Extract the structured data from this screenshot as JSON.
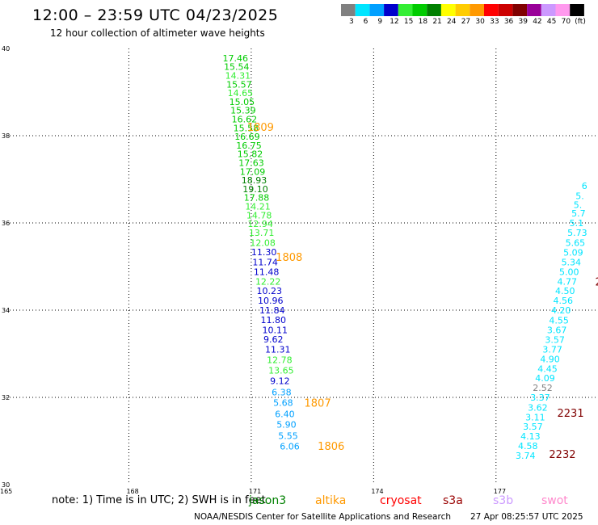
{
  "title": "12:00 – 23:59 UTC 04/23/2025",
  "subtitle": "12 hour collection of altimeter wave heights",
  "footer": "NOAA/NESDIS Center for Satellite Applications and Research",
  "timestamp": "27 Apr 08:25:57 UTC 2025",
  "note": "note:  1) Time is in UTC; 2) SWH is in feet",
  "satellites": [
    {
      "name": "jason3",
      "color": "#008000"
    },
    {
      "name": "altika",
      "color": "#ff9900"
    },
    {
      "name": "cryosat",
      "color": "#ff0000"
    },
    {
      "name": "s3a",
      "color": "#990000"
    },
    {
      "name": "s3b",
      "color": "#cc99ff"
    },
    {
      "name": "swot",
      "color": "#ff88cc"
    }
  ],
  "colorbar": {
    "labels": [
      "3",
      "6",
      "9",
      "12",
      "15",
      "18",
      "21",
      "24",
      "27",
      "30",
      "33",
      "36",
      "39",
      "42",
      "45",
      "70",
      "(ft)"
    ],
    "colors": [
      "#808080",
      "#00e5ff",
      "#00a0ff",
      "#0000cc",
      "#33ee33",
      "#00cc00",
      "#008000",
      "#ffff00",
      "#ffcc00",
      "#ff9900",
      "#ff0000",
      "#cc0000",
      "#800000",
      "#990099",
      "#cc99ff",
      "#ff99ee",
      "#000000"
    ]
  },
  "chart_data": {
    "type": "scatter",
    "title": "12:00 – 23:59 UTC 04/23/2025",
    "subtitle": "12 hour collection of altimeter wave heights",
    "x_ticks": [
      165,
      168,
      171,
      174,
      177
    ],
    "y_ticks": [
      30,
      32,
      34,
      36,
      38,
      40
    ],
    "xlim": [
      165,
      179.5
    ],
    "ylim": [
      30,
      40
    ],
    "grid": true,
    "series": [
      {
        "name": "jason3",
        "points": [
          {
            "x": 170.3,
            "y": 39.78,
            "v": "17.46",
            "c": "#00cc00"
          },
          {
            "x": 170.33,
            "y": 39.58,
            "v": "15.54",
            "c": "#00cc00"
          },
          {
            "x": 170.36,
            "y": 39.38,
            "v": "14.31",
            "c": "#33ee33"
          },
          {
            "x": 170.39,
            "y": 39.18,
            "v": "15.57",
            "c": "#00cc00"
          },
          {
            "x": 170.42,
            "y": 38.98,
            "v": "14.65",
            "c": "#33ee33"
          },
          {
            "x": 170.46,
            "y": 38.78,
            "v": "15.05",
            "c": "#00cc00"
          },
          {
            "x": 170.49,
            "y": 38.58,
            "v": "15.39",
            "c": "#00cc00"
          },
          {
            "x": 170.52,
            "y": 38.38,
            "v": "16.62",
            "c": "#00cc00"
          },
          {
            "x": 170.56,
            "y": 38.18,
            "v": "15.58",
            "c": "#00cc00"
          },
          {
            "x": 170.59,
            "y": 37.98,
            "v": "16.69",
            "c": "#00cc00"
          },
          {
            "x": 170.63,
            "y": 37.78,
            "v": "16.75",
            "c": "#00cc00"
          },
          {
            "x": 170.66,
            "y": 37.58,
            "v": "15.82",
            "c": "#00cc00"
          },
          {
            "x": 170.69,
            "y": 37.38,
            "v": "17.63",
            "c": "#00cc00"
          },
          {
            "x": 170.72,
            "y": 37.18,
            "v": "17.09",
            "c": "#00cc00"
          },
          {
            "x": 170.76,
            "y": 36.98,
            "v": "18.93",
            "c": "#008000"
          },
          {
            "x": 170.79,
            "y": 36.78,
            "v": "19.10",
            "c": "#008000"
          },
          {
            "x": 170.82,
            "y": 36.58,
            "v": "17.88",
            "c": "#00cc00"
          },
          {
            "x": 170.85,
            "y": 36.38,
            "v": "14.21",
            "c": "#33ee33"
          },
          {
            "x": 170.88,
            "y": 36.18,
            "v": "14.78",
            "c": "#33ee33"
          },
          {
            "x": 170.91,
            "y": 35.98,
            "v": "12.94",
            "c": "#33ee33"
          },
          {
            "x": 170.94,
            "y": 35.78,
            "v": "13.71",
            "c": "#33ee33"
          },
          {
            "x": 170.97,
            "y": 35.55,
            "v": "12.08",
            "c": "#33ee33"
          },
          {
            "x": 171.0,
            "y": 35.33,
            "v": "11.30",
            "c": "#0000cc"
          },
          {
            "x": 171.03,
            "y": 35.1,
            "v": "11.74",
            "c": "#0000cc"
          },
          {
            "x": 171.06,
            "y": 34.88,
            "v": "11.48",
            "c": "#0000cc"
          },
          {
            "x": 171.1,
            "y": 34.66,
            "v": "12.22",
            "c": "#33ee33"
          },
          {
            "x": 171.13,
            "y": 34.44,
            "v": "10.23",
            "c": "#0000cc"
          },
          {
            "x": 171.16,
            "y": 34.22,
            "v": "10.96",
            "c": "#0000cc"
          },
          {
            "x": 171.2,
            "y": 34.0,
            "v": "11.84",
            "c": "#0000cc"
          },
          {
            "x": 171.23,
            "y": 33.78,
            "v": "11.80",
            "c": "#0000cc"
          },
          {
            "x": 171.27,
            "y": 33.55,
            "v": "10.11",
            "c": "#0000cc"
          },
          {
            "x": 171.3,
            "y": 33.33,
            "v": "9.62",
            "c": "#0000cc"
          },
          {
            "x": 171.34,
            "y": 33.1,
            "v": "11.31",
            "c": "#0000cc"
          },
          {
            "x": 171.38,
            "y": 32.86,
            "v": "12.78",
            "c": "#33ee33"
          },
          {
            "x": 171.42,
            "y": 32.62,
            "v": "13.65",
            "c": "#33ee33"
          },
          {
            "x": 171.46,
            "y": 32.38,
            "v": "9.12",
            "c": "#0000cc"
          },
          {
            "x": 171.5,
            "y": 32.12,
            "v": "6.38",
            "c": "#00a0ff"
          },
          {
            "x": 171.54,
            "y": 31.88,
            "v": "5.68",
            "c": "#00a0ff"
          },
          {
            "x": 171.58,
            "y": 31.62,
            "v": "6.40",
            "c": "#00a0ff"
          },
          {
            "x": 171.62,
            "y": 31.38,
            "v": "5.90",
            "c": "#00a0ff"
          },
          {
            "x": 171.66,
            "y": 31.12,
            "v": "5.55",
            "c": "#00a0ff"
          },
          {
            "x": 171.7,
            "y": 30.88,
            "v": "6.06",
            "c": "#00a0ff"
          }
        ]
      },
      {
        "name": "cyan-track",
        "points": [
          {
            "x": 179.1,
            "y": 36.85,
            "v": "6",
            "c": "#00e5ff"
          },
          {
            "x": 178.95,
            "y": 36.62,
            "v": "5.",
            "c": "#00e5ff"
          },
          {
            "x": 178.9,
            "y": 36.42,
            "v": "5.",
            "c": "#00e5ff"
          },
          {
            "x": 178.85,
            "y": 36.22,
            "v": "5.7",
            "c": "#00e5ff"
          },
          {
            "x": 178.8,
            "y": 36.0,
            "v": "5.1",
            "c": "#00e5ff"
          },
          {
            "x": 178.75,
            "y": 35.78,
            "v": "5.73",
            "c": "#00e5ff"
          },
          {
            "x": 178.7,
            "y": 35.55,
            "v": "5.65",
            "c": "#00e5ff"
          },
          {
            "x": 178.65,
            "y": 35.32,
            "v": "5.09",
            "c": "#00e5ff"
          },
          {
            "x": 178.6,
            "y": 35.1,
            "v": "5.34",
            "c": "#00e5ff"
          },
          {
            "x": 178.55,
            "y": 34.88,
            "v": "5.00",
            "c": "#00e5ff"
          },
          {
            "x": 178.5,
            "y": 34.66,
            "v": "4.77",
            "c": "#00e5ff"
          },
          {
            "x": 178.45,
            "y": 34.44,
            "v": "4.50",
            "c": "#00e5ff"
          },
          {
            "x": 178.4,
            "y": 34.22,
            "v": "4.56",
            "c": "#00e5ff"
          },
          {
            "x": 178.35,
            "y": 34.0,
            "v": "4.20",
            "c": "#00e5ff"
          },
          {
            "x": 178.3,
            "y": 33.77,
            "v": "4.55",
            "c": "#00e5ff"
          },
          {
            "x": 178.25,
            "y": 33.55,
            "v": "3.67",
            "c": "#00e5ff"
          },
          {
            "x": 178.2,
            "y": 33.32,
            "v": "3.57",
            "c": "#00e5ff"
          },
          {
            "x": 178.14,
            "y": 33.1,
            "v": "3.77",
            "c": "#00e5ff"
          },
          {
            "x": 178.08,
            "y": 32.88,
            "v": "4.90",
            "c": "#00e5ff"
          },
          {
            "x": 178.02,
            "y": 32.66,
            "v": "4.45",
            "c": "#00e5ff"
          },
          {
            "x": 177.96,
            "y": 32.44,
            "v": "4.09",
            "c": "#00e5ff"
          },
          {
            "x": 177.9,
            "y": 32.22,
            "v": "2.52",
            "c": "#808080"
          },
          {
            "x": 177.84,
            "y": 32.0,
            "v": "3.37",
            "c": "#00e5ff"
          },
          {
            "x": 177.78,
            "y": 31.77,
            "v": "3.62",
            "c": "#00e5ff"
          },
          {
            "x": 177.72,
            "y": 31.55,
            "v": "3.11",
            "c": "#00e5ff"
          },
          {
            "x": 177.66,
            "y": 31.33,
            "v": "3.57",
            "c": "#00e5ff"
          },
          {
            "x": 177.6,
            "y": 31.11,
            "v": "4.13",
            "c": "#00e5ff"
          },
          {
            "x": 177.54,
            "y": 30.89,
            "v": "4.58",
            "c": "#00e5ff"
          },
          {
            "x": 177.48,
            "y": 30.67,
            "v": "3.74",
            "c": "#00e5ff"
          }
        ]
      }
    ],
    "time_labels": [
      {
        "x": 170.9,
        "y": 38.2,
        "t": "1809",
        "c": "#ff9900"
      },
      {
        "x": 171.6,
        "y": 35.22,
        "t": "1808",
        "c": "#ff9900"
      },
      {
        "x": 172.3,
        "y": 31.88,
        "t": "1807",
        "c": "#ff9900"
      },
      {
        "x": 172.63,
        "y": 30.89,
        "t": "1806",
        "c": "#ff9900"
      },
      {
        "x": 178.5,
        "y": 31.65,
        "t": "2231",
        "c": "#800000"
      },
      {
        "x": 178.3,
        "y": 30.7,
        "t": "2232",
        "c": "#800000"
      },
      {
        "x": 179.43,
        "y": 34.66,
        "t": "2",
        "c": "#800000"
      }
    ]
  }
}
